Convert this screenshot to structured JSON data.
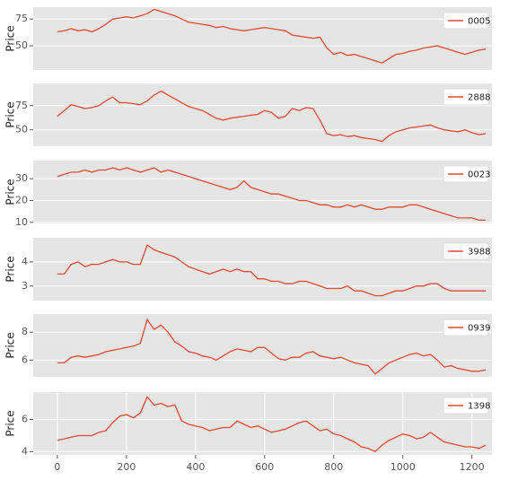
{
  "chart_data": [
    {
      "type": "line",
      "ylabel": "Price",
      "legend": "upper right",
      "grid": true,
      "xlim": [
        -70,
        1258
      ],
      "ylim": [
        27.5,
        86
      ],
      "yticks": [
        50,
        75
      ],
      "x": [
        0,
        20,
        40,
        60,
        80,
        100,
        120,
        140,
        160,
        180,
        200,
        220,
        240,
        260,
        280,
        300,
        320,
        340,
        360,
        380,
        400,
        420,
        440,
        460,
        480,
        500,
        520,
        540,
        560,
        580,
        600,
        620,
        640,
        660,
        680,
        700,
        720,
        740,
        760,
        780,
        800,
        820,
        840,
        860,
        880,
        900,
        920,
        940,
        960,
        980,
        1000,
        1020,
        1040,
        1060,
        1080,
        1100,
        1120,
        1140,
        1160,
        1180,
        1200,
        1220,
        1240
      ],
      "series": [
        {
          "name": "0005",
          "color": "#E24A33",
          "values": [
            63,
            64,
            66,
            64,
            65,
            63,
            66,
            70,
            75,
            76,
            77,
            76,
            78,
            80,
            84,
            82,
            80,
            78,
            75,
            72,
            71,
            70,
            69,
            67,
            68,
            66,
            65,
            64,
            65,
            66,
            67,
            66,
            65,
            64,
            60,
            59,
            58,
            57,
            58,
            48,
            42,
            44,
            41,
            42,
            40,
            38,
            36,
            34,
            38,
            42,
            43,
            45,
            46,
            48,
            49,
            50,
            48,
            46,
            44,
            42,
            44,
            46,
            47
          ]
        }
      ]
    },
    {
      "type": "line",
      "ylabel": "Price",
      "legend": "upper right",
      "grid": true,
      "xlim": [
        -70,
        1258
      ],
      "ylim": [
        33,
        98
      ],
      "yticks": [
        50,
        75
      ],
      "x": [
        0,
        20,
        40,
        60,
        80,
        100,
        120,
        140,
        160,
        180,
        200,
        220,
        240,
        260,
        280,
        300,
        320,
        340,
        360,
        380,
        400,
        420,
        440,
        460,
        480,
        500,
        520,
        540,
        560,
        580,
        600,
        620,
        640,
        660,
        680,
        700,
        720,
        740,
        760,
        780,
        800,
        820,
        840,
        860,
        880,
        900,
        920,
        940,
        960,
        980,
        1000,
        1020,
        1040,
        1060,
        1080,
        1100,
        1120,
        1140,
        1160,
        1180,
        1200,
        1220,
        1240
      ],
      "series": [
        {
          "name": "2888",
          "color": "#E24A33",
          "values": [
            64,
            70,
            76,
            74,
            72,
            73,
            75,
            80,
            84,
            78,
            78,
            77,
            76,
            80,
            86,
            90,
            86,
            82,
            78,
            74,
            72,
            70,
            66,
            62,
            60,
            62,
            63,
            64,
            65,
            66,
            70,
            68,
            62,
            64,
            72,
            70,
            73,
            72,
            60,
            46,
            44,
            45,
            43,
            44,
            42,
            41,
            40,
            38,
            44,
            48,
            50,
            52,
            53,
            54,
            55,
            52,
            50,
            49,
            48,
            50,
            47,
            45,
            46
          ]
        }
      ]
    },
    {
      "type": "line",
      "ylabel": "Price",
      "legend": "upper right",
      "grid": true,
      "xlim": [
        -70,
        1258
      ],
      "ylim": [
        9.5,
        38.3
      ],
      "yticks": [
        10,
        20,
        30
      ],
      "x": [
        0,
        20,
        40,
        60,
        80,
        100,
        120,
        140,
        160,
        180,
        200,
        220,
        240,
        260,
        280,
        300,
        320,
        340,
        360,
        380,
        400,
        420,
        440,
        460,
        480,
        500,
        520,
        540,
        560,
        580,
        600,
        620,
        640,
        660,
        680,
        700,
        720,
        740,
        760,
        780,
        800,
        820,
        840,
        860,
        880,
        900,
        920,
        940,
        960,
        980,
        1000,
        1020,
        1040,
        1060,
        1080,
        1100,
        1120,
        1140,
        1160,
        1180,
        1200,
        1220,
        1240
      ],
      "series": [
        {
          "name": "0023",
          "color": "#E24A33",
          "values": [
            31,
            32,
            33,
            33,
            34,
            33,
            34,
            34,
            35,
            34,
            35,
            34,
            33,
            34,
            35,
            33,
            34,
            33,
            32,
            31,
            30,
            29,
            28,
            27,
            26,
            25,
            26,
            29,
            26,
            25,
            24,
            23,
            23,
            22,
            21,
            20,
            20,
            19,
            18,
            18,
            17,
            17,
            18,
            17,
            18,
            17,
            16,
            16,
            17,
            17,
            17,
            18,
            18,
            17,
            16,
            15,
            14,
            13,
            12,
            12,
            12,
            11,
            11
          ]
        }
      ]
    },
    {
      "type": "line",
      "ylabel": "Price",
      "legend": "upper right",
      "grid": true,
      "xlim": [
        -70,
        1258
      ],
      "ylim": [
        2.4,
        5.0
      ],
      "yticks": [
        3,
        4
      ],
      "x": [
        0,
        20,
        40,
        60,
        80,
        100,
        120,
        140,
        160,
        180,
        200,
        220,
        240,
        260,
        280,
        300,
        320,
        340,
        360,
        380,
        400,
        420,
        440,
        460,
        480,
        500,
        520,
        540,
        560,
        580,
        600,
        620,
        640,
        660,
        680,
        700,
        720,
        740,
        760,
        780,
        800,
        820,
        840,
        860,
        880,
        900,
        920,
        940,
        960,
        980,
        1000,
        1020,
        1040,
        1060,
        1080,
        1100,
        1120,
        1140,
        1160,
        1180,
        1200,
        1220,
        1240
      ],
      "series": [
        {
          "name": "3988",
          "color": "#E24A33",
          "values": [
            3.5,
            3.5,
            3.9,
            4.0,
            3.8,
            3.9,
            3.9,
            4.0,
            4.1,
            4.0,
            4.0,
            3.9,
            3.9,
            4.7,
            4.5,
            4.4,
            4.3,
            4.2,
            4.0,
            3.8,
            3.7,
            3.6,
            3.5,
            3.6,
            3.7,
            3.6,
            3.7,
            3.6,
            3.6,
            3.3,
            3.3,
            3.2,
            3.2,
            3.1,
            3.1,
            3.2,
            3.2,
            3.1,
            3.0,
            2.9,
            2.9,
            2.9,
            3.0,
            2.8,
            2.8,
            2.7,
            2.6,
            2.6,
            2.7,
            2.8,
            2.8,
            2.9,
            3.0,
            3.0,
            3.1,
            3.1,
            2.9,
            2.8,
            2.8,
            2.8,
            2.8,
            2.8,
            2.8
          ]
        }
      ]
    },
    {
      "type": "line",
      "ylabel": "Price",
      "legend": "upper right",
      "grid": true,
      "xlim": [
        -70,
        1258
      ],
      "ylim": [
        4.8,
        9.3
      ],
      "yticks": [
        6,
        8
      ],
      "x": [
        0,
        20,
        40,
        60,
        80,
        100,
        120,
        140,
        160,
        180,
        200,
        220,
        240,
        260,
        280,
        300,
        320,
        340,
        360,
        380,
        400,
        420,
        440,
        460,
        480,
        500,
        520,
        540,
        560,
        580,
        600,
        620,
        640,
        660,
        680,
        700,
        720,
        740,
        760,
        780,
        800,
        820,
        840,
        860,
        880,
        900,
        920,
        940,
        960,
        980,
        1000,
        1020,
        1040,
        1060,
        1080,
        1100,
        1120,
        1140,
        1160,
        1180,
        1200,
        1220,
        1240
      ],
      "series": [
        {
          "name": "0939",
          "color": "#E24A33",
          "values": [
            5.8,
            5.8,
            6.2,
            6.3,
            6.2,
            6.3,
            6.4,
            6.6,
            6.7,
            6.8,
            6.9,
            7.0,
            7.2,
            8.9,
            8.2,
            8.5,
            8.0,
            7.3,
            7.0,
            6.6,
            6.5,
            6.3,
            6.2,
            6.0,
            6.3,
            6.6,
            6.8,
            6.7,
            6.6,
            6.9,
            6.9,
            6.5,
            6.1,
            6.0,
            6.2,
            6.2,
            6.5,
            6.6,
            6.3,
            6.2,
            6.1,
            6.2,
            6.0,
            5.8,
            5.7,
            5.6,
            5.0,
            5.4,
            5.8,
            6.0,
            6.2,
            6.4,
            6.5,
            6.3,
            6.4,
            6.0,
            5.5,
            5.6,
            5.4,
            5.3,
            5.2,
            5.2,
            5.3
          ]
        }
      ]
    },
    {
      "type": "line",
      "ylabel": "Price",
      "legend": "upper right",
      "grid": true,
      "xlim": [
        -70,
        1258
      ],
      "ylim": [
        3.8,
        7.7
      ],
      "yticks": [
        4,
        6
      ],
      "xticks": [
        0,
        200,
        400,
        600,
        800,
        1000,
        1200
      ],
      "x": [
        0,
        20,
        40,
        60,
        80,
        100,
        120,
        140,
        160,
        180,
        200,
        220,
        240,
        260,
        280,
        300,
        320,
        340,
        360,
        380,
        400,
        420,
        440,
        460,
        480,
        500,
        520,
        540,
        560,
        580,
        600,
        620,
        640,
        660,
        680,
        700,
        720,
        740,
        760,
        780,
        800,
        820,
        840,
        860,
        880,
        900,
        920,
        940,
        960,
        980,
        1000,
        1020,
        1040,
        1060,
        1080,
        1100,
        1120,
        1140,
        1160,
        1180,
        1200,
        1220,
        1240
      ],
      "series": [
        {
          "name": "1398",
          "color": "#E24A33",
          "values": [
            4.7,
            4.8,
            4.9,
            5.0,
            5.0,
            5.0,
            5.2,
            5.3,
            5.8,
            6.2,
            6.3,
            6.1,
            6.4,
            7.4,
            6.9,
            7.0,
            6.8,
            6.9,
            5.9,
            5.7,
            5.6,
            5.5,
            5.3,
            5.4,
            5.5,
            5.5,
            5.9,
            5.7,
            5.5,
            5.6,
            5.4,
            5.2,
            5.3,
            5.4,
            5.6,
            5.8,
            5.9,
            5.6,
            5.3,
            5.4,
            5.1,
            5.0,
            4.8,
            4.6,
            4.3,
            4.2,
            4.0,
            4.4,
            4.7,
            4.9,
            5.1,
            5.0,
            4.8,
            4.9,
            5.2,
            4.9,
            4.6,
            4.5,
            4.4,
            4.3,
            4.3,
            4.2,
            4.4
          ]
        }
      ]
    }
  ]
}
